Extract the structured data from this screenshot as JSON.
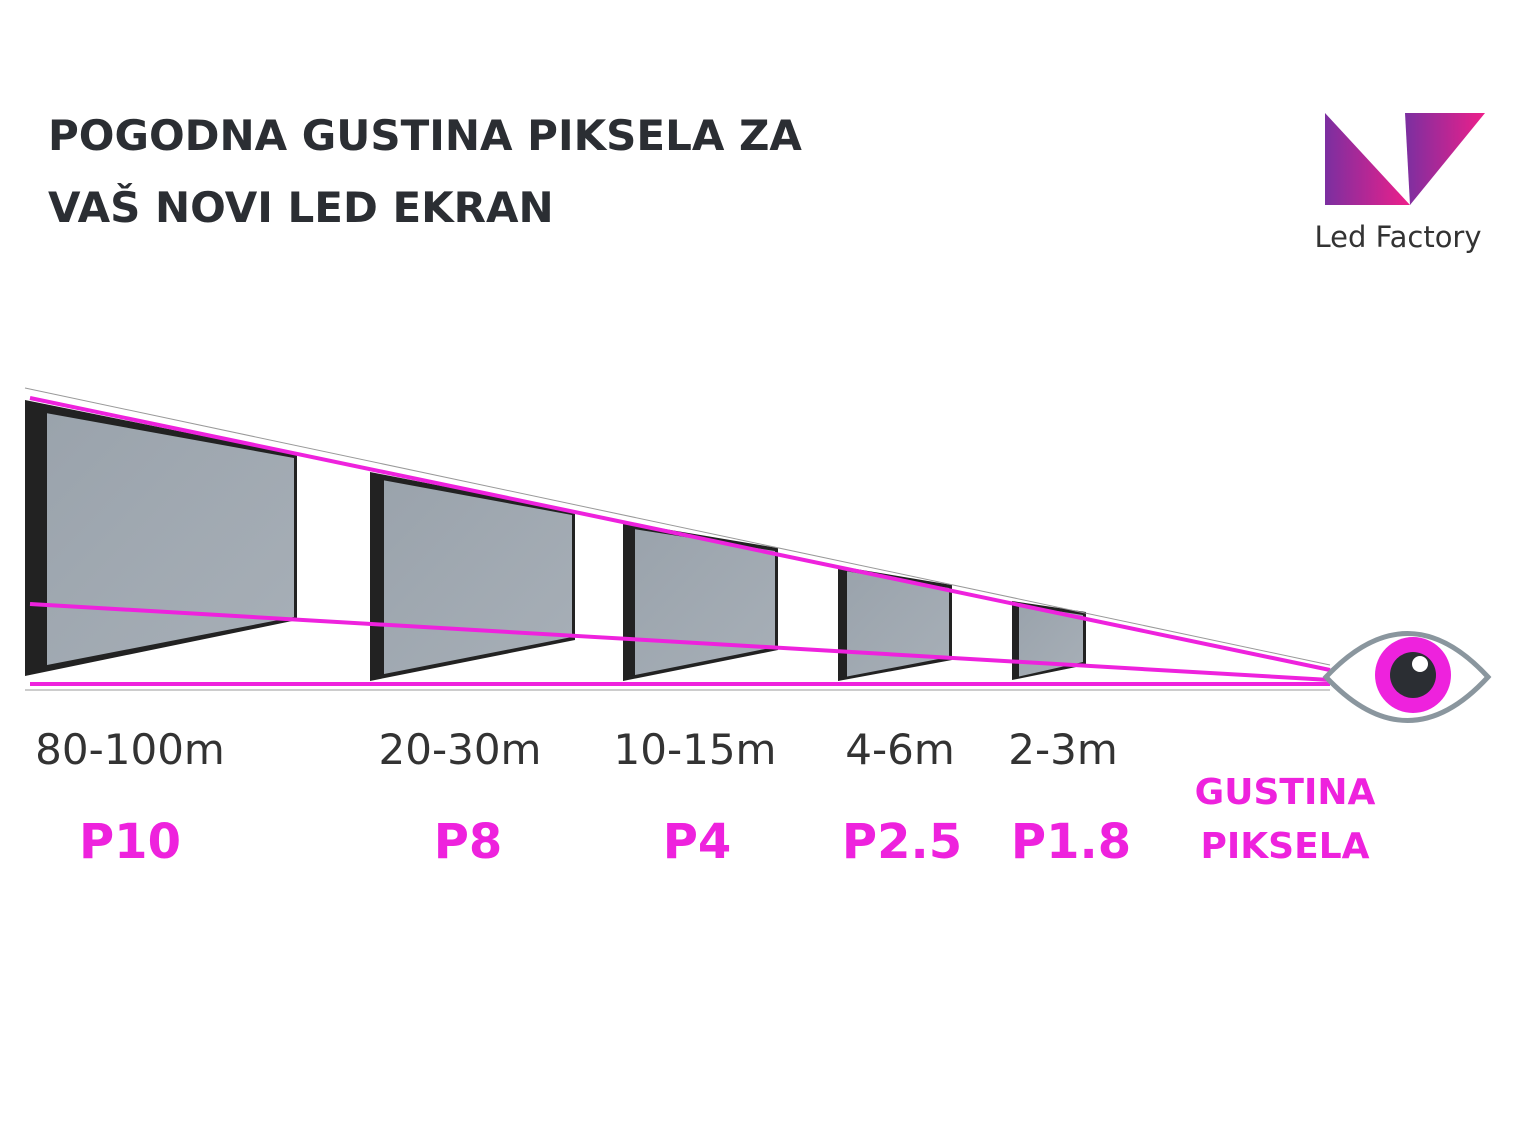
{
  "header": {
    "title": [
      "POGODNA GUSTINA PIKSELA ZA",
      "VAŠ NOVI LED EKRAN"
    ],
    "logo": "Led Factory"
  },
  "screens": [
    {
      "distance": "80-100m",
      "pitch": "P10"
    },
    {
      "distance": "20-30m",
      "pitch": "P8"
    },
    {
      "distance": "10-15m",
      "pitch": "P4"
    },
    {
      "distance": "4-6m",
      "pitch": "P2.5"
    },
    {
      "distance": "2-3m",
      "pitch": "P1.8"
    }
  ],
  "pitch_label": [
    "GUSTINA",
    "PIKSELA"
  ]
}
